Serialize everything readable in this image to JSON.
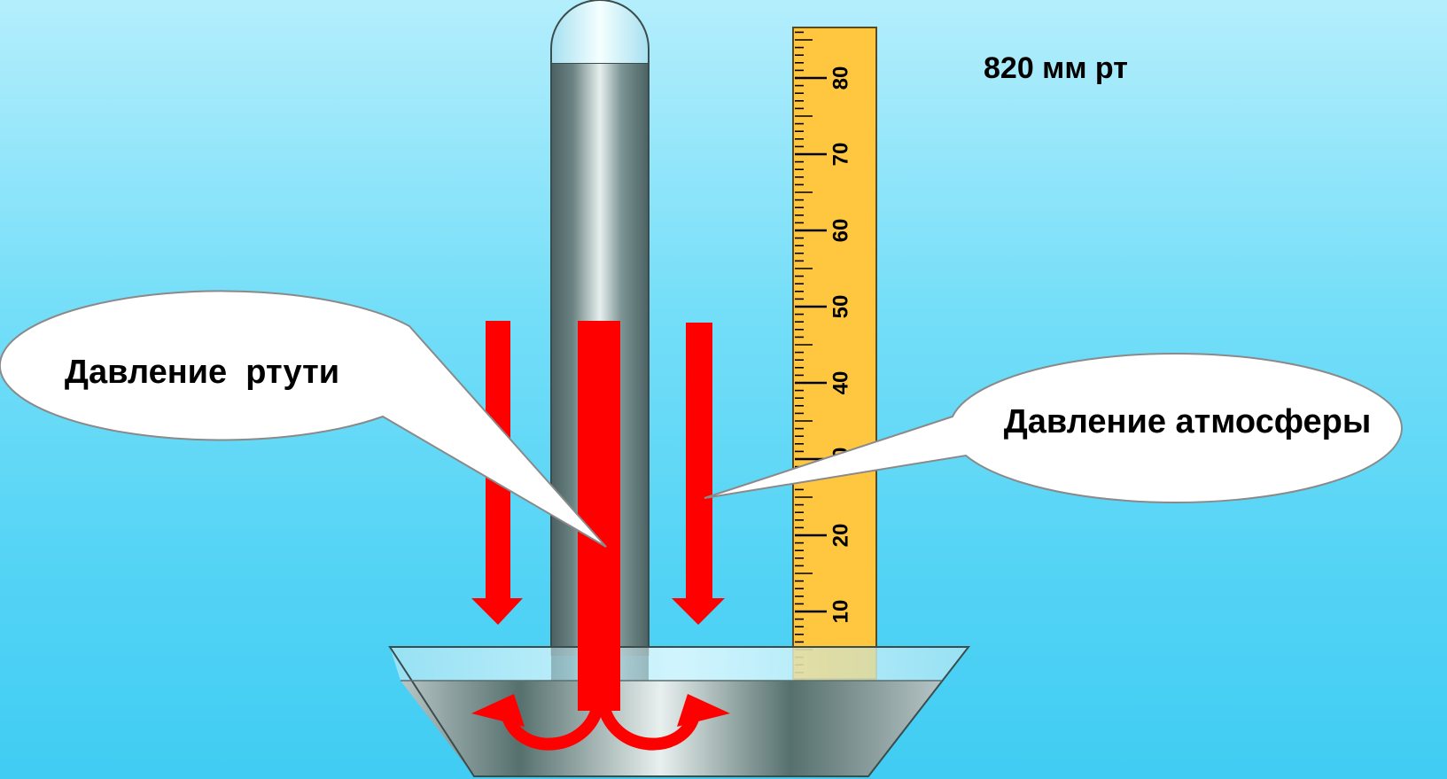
{
  "reading": "820 мм рт",
  "labels": {
    "mercury_pressure": "Давление  ртути",
    "atmospheric_pressure": "Давление атмосферы"
  },
  "scale": {
    "tick_labels": [
      "10",
      "20",
      "30",
      "40",
      "50",
      "60",
      "70",
      "80"
    ],
    "unit_major": 10,
    "unit_minor": 1
  },
  "colors": {
    "arrow": "#ff0000",
    "ruler": "#ffc640",
    "mercury_dark": "#4c6262",
    "mercury_light": "#e6f0ee",
    "background_top": "#b4eefc",
    "background_bottom": "#40ccf3"
  },
  "icons": {
    "down_arrow": "arrow-down-icon",
    "curved_arrow": "curved-arrow-icon"
  }
}
